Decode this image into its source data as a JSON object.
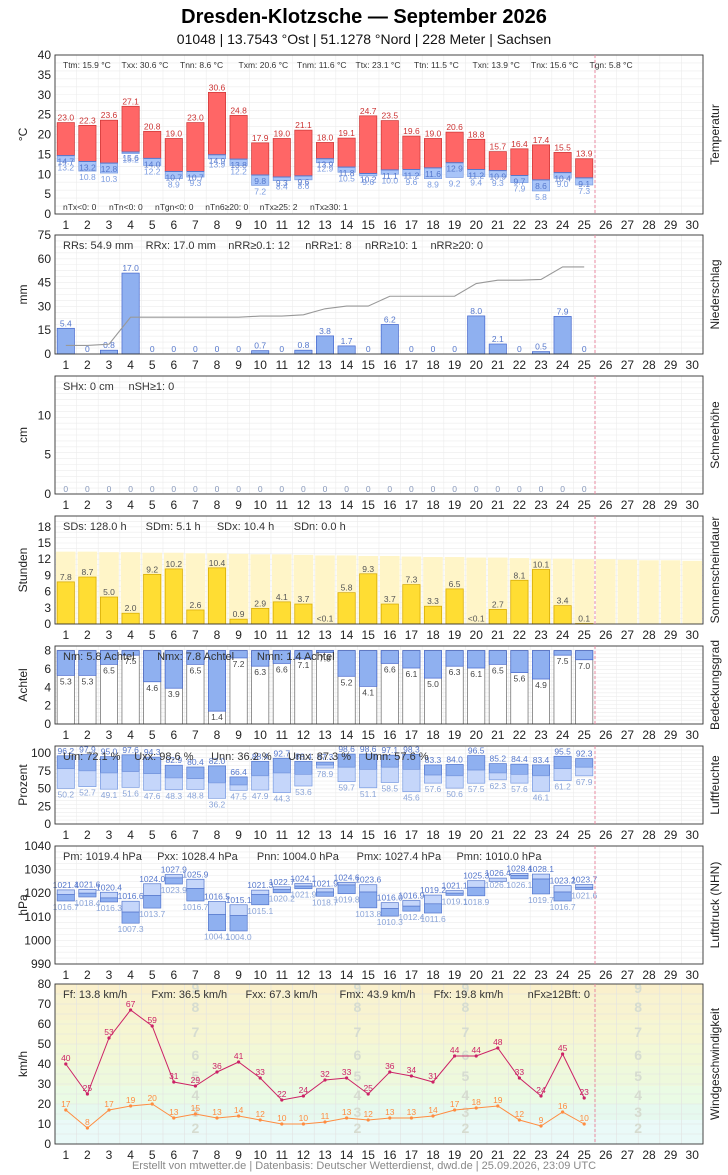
{
  "page": {
    "title": "Dresden-Klotzsche  —  September 2026",
    "subtitle": "01048  |  13.7543 °Ost  |  51.1278 °Nord  |  228 Meter  |  Sachsen",
    "footer": "Erstellt von mtwetter.de | Datenbasis: Deutscher Wetterdienst, dwd.de | 25.09.2026, 23:09 UTC"
  },
  "colors": {
    "temp_upper": "#ff6666",
    "temp_lower": "#a8c4f8",
    "precip": "#8fb0f0",
    "sun": "#ffdd33",
    "sun_bg": "#fff5c8",
    "cloud": "#8fb0f0",
    "humidity": "#8fb0f0",
    "pressure": "#8fb0f0",
    "wind_fx": "#cc2266",
    "wind_ff": "#ff8c40",
    "today_line": "#e88aa0"
  },
  "chart_data": [
    {
      "id": "temperatur",
      "type": "bar",
      "panel_label": "Temperatur",
      "ylabel": "°C",
      "ylim": [
        0,
        40
      ],
      "yticks": [
        0,
        5,
        10,
        15,
        20,
        25,
        30,
        35,
        40
      ],
      "days": [
        1,
        2,
        3,
        4,
        5,
        6,
        7,
        8,
        9,
        10,
        11,
        12,
        13,
        14,
        15,
        16,
        17,
        18,
        19,
        20,
        21,
        22,
        23,
        24,
        25
      ],
      "series": [
        {
          "name": "Tx",
          "values": [
            23.0,
            22.3,
            23.6,
            27.1,
            20.8,
            19.0,
            23.0,
            30.6,
            24.8,
            17.9,
            19.0,
            21.1,
            18.0,
            19.1,
            24.7,
            23.5,
            19.6,
            19.0,
            20.6,
            18.8,
            15.7,
            16.4,
            17.4,
            15.5,
            13.9
          ]
        },
        {
          "name": "Tm",
          "values": [
            14.7,
            13.2,
            12.8,
            15.6,
            14.0,
            10.7,
            10.7,
            14.9,
            13.8,
            9.8,
            9.3,
            9.6,
            13.9,
            11.8,
            10.2,
            11.1,
            11.2,
            11.6,
            12.9,
            11.2,
            10.9,
            9.7,
            8.6,
            10.4,
            9.1
          ]
        },
        {
          "name": "Tn",
          "values": [
            13.2,
            10.8,
            10.3,
            15.2,
            12.2,
            8.9,
            9.3,
            13.9,
            12.2,
            7.2,
            8.4,
            8.6,
            12.9,
            10.5,
            9.6,
            10.0,
            9.6,
            8.9,
            9.2,
            9.4,
            9.3,
            7.9,
            5.8,
            9.0,
            7.3
          ]
        }
      ],
      "stats_top": [
        "Ttm: 15.9 °C",
        "Txx: 30.6 °C",
        "Tnn: 8.6 °C",
        "Txm: 20.6 °C",
        "Tnm: 11.6 °C",
        "Ttx: 23.1 °C",
        "Ttn: 11.5 °C",
        "Txn: 13.9 °C",
        "Tnx: 15.6 °C",
        "Tgn: 5.8 °C"
      ],
      "stats_bottom": [
        "nTx<0: 0",
        "nTn<0: 0",
        "nTgn<0: 0",
        "nTn6≥20: 0",
        "nTx≥25: 2",
        "nTx≥30: 1"
      ]
    },
    {
      "id": "niederschlag",
      "type": "bar",
      "panel_label": "Niederschlag",
      "ylabel": "mm",
      "ylim": [
        0,
        25
      ],
      "yticks": [
        0,
        5,
        10,
        15,
        20,
        25
      ],
      "ytick_labels": [
        "0",
        "15",
        "30",
        "45",
        "60",
        "75"
      ],
      "values": [
        5.4,
        0,
        0.8,
        17.0,
        0,
        0,
        0,
        0,
        0,
        0.7,
        0,
        0.8,
        3.8,
        1.7,
        0,
        6.2,
        0,
        0,
        0,
        8.0,
        2.1,
        0,
        0.5,
        7.9,
        0
      ],
      "cumulative": [
        5.4,
        5.4,
        6.2,
        23.2,
        23.2,
        23.2,
        23.2,
        23.2,
        23.2,
        23.9,
        23.9,
        24.7,
        28.5,
        30.2,
        30.2,
        36.4,
        36.4,
        36.4,
        36.4,
        44.4,
        46.5,
        46.5,
        47.0,
        54.9,
        54.9
      ],
      "stats_top": [
        "RRs: 54.9 mm",
        "RRx: 17.0 mm",
        "nRR≥0.1: 12",
        "nRR≥1: 8",
        "nRR≥10: 1",
        "nRR≥20: 0"
      ]
    },
    {
      "id": "schneehoehe",
      "type": "bar",
      "panel_label": "Schneehöhe",
      "ylabel": "cm",
      "ylim": [
        0,
        15
      ],
      "yticks": [
        0,
        5,
        10
      ],
      "values": [
        0,
        0,
        0,
        0,
        0,
        0,
        0,
        0,
        0,
        0,
        0,
        0,
        0,
        0,
        0,
        0,
        0,
        0,
        0,
        0,
        0,
        0,
        0,
        0,
        0
      ],
      "stats_top": [
        "SHx: 0 cm",
        "nSH≥1: 0"
      ]
    },
    {
      "id": "sonnenschein",
      "type": "bar",
      "panel_label": "Sonnenscheindauer",
      "ylabel": "Stunden",
      "ylim": [
        0,
        20
      ],
      "yticks": [
        0,
        3,
        6,
        9,
        12,
        15,
        18
      ],
      "values": [
        7.8,
        8.7,
        5.0,
        2.0,
        9.2,
        10.2,
        2.6,
        10.4,
        0.9,
        2.9,
        4.1,
        3.7,
        0.05,
        5.8,
        9.3,
        3.7,
        7.3,
        3.3,
        6.5,
        0.05,
        2.7,
        8.1,
        10.1,
        3.4,
        0.1
      ],
      "labels": [
        "7.8",
        "8.7",
        "5.0",
        "2.0",
        "9.2",
        "10.2",
        "2.6",
        "10.4",
        "0.9",
        "2.9",
        "4.1",
        "3.7",
        "<0.1",
        "5.8",
        "9.3",
        "3.7",
        "7.3",
        "3.3",
        "6.5",
        "<0.1",
        "2.7",
        "8.1",
        "10.1",
        "3.4",
        "0.1"
      ],
      "astronomical_max": [
        13.4,
        13.4,
        13.3,
        13.3,
        13.2,
        13.2,
        13.1,
        13.1,
        13.0,
        12.9,
        12.9,
        12.8,
        12.7,
        12.7,
        12.6,
        12.6,
        12.5,
        12.4,
        12.4,
        12.3,
        12.3,
        12.2,
        12.1,
        12.1,
        12.0,
        12.0,
        11.9,
        11.8,
        11.8,
        11.7
      ],
      "stats_top": [
        "SDs: 128.0 h",
        "SDm: 5.1 h",
        "SDx: 10.4 h",
        "SDn: 0.0 h"
      ]
    },
    {
      "id": "bedeckungsgrad",
      "type": "bar",
      "panel_label": "Bedeckungsgrad",
      "ylabel": "Achtel",
      "ylim": [
        0,
        8.5
      ],
      "yticks": [
        0,
        2,
        4,
        6,
        8
      ],
      "values": [
        5.3,
        5.3,
        6.5,
        7.5,
        4.6,
        3.9,
        6.5,
        1.4,
        7.2,
        6.3,
        6.6,
        7.1,
        7.8,
        5.2,
        4.1,
        6.6,
        6.1,
        5.0,
        6.3,
        6.1,
        6.5,
        5.6,
        4.9,
        7.5,
        7.0
      ],
      "stats_top": [
        "Nm: 5.8 Achtel",
        "Nmx: 7.8 Achtel",
        "Nmn: 1.4 Achtel"
      ]
    },
    {
      "id": "luftfeuchte",
      "type": "bar",
      "panel_label": "Luftfeuchte",
      "ylabel": "Prozent",
      "ylim": [
        0,
        110
      ],
      "yticks": [
        0,
        25,
        50,
        75,
        100
      ],
      "series": [
        {
          "name": "Ux",
          "values": [
            96.2,
            97.9,
            95.0,
            97.6,
            94.3,
            82.9,
            80.4,
            82.0,
            66.4,
            88.4,
            92.7,
            88.4,
            87.3,
            98.6,
            98.6,
            97.1,
            98.3,
            83.3,
            84.0,
            96.5,
            85.2,
            84.4,
            83.4,
            95.5,
            92.3
          ]
        },
        {
          "name": "Um",
          "values": [
            78.0,
            75.0,
            72.0,
            74.0,
            71.0,
            65.0,
            64.0,
            58.0,
            55.0,
            68.0,
            72.0,
            70.0,
            83.0,
            80.0,
            77.0,
            80.0,
            77.0,
            69.0,
            68.0,
            76.0,
            72.0,
            70.0,
            68.0,
            78.0,
            80.0
          ]
        },
        {
          "name": "Un",
          "values": [
            50.2,
            52.7,
            49.1,
            51.6,
            47.6,
            48.3,
            48.8,
            36.2,
            47.5,
            47.9,
            44.3,
            53.6,
            78.9,
            59.7,
            51.1,
            58.5,
            45.6,
            57.6,
            50.6,
            57.5,
            62.3,
            57.6,
            46.1,
            61.2,
            67.9
          ]
        }
      ],
      "stats_top": [
        "Um: 72.1 %",
        "Uxx: 98.6 %",
        "Unn: 36.2 %",
        "Umx: 87.3 %",
        "Umn: 57.6 %"
      ]
    },
    {
      "id": "luftdruck",
      "type": "bar",
      "panel_label": "Luftdruck (NHN)",
      "ylabel": "hPa",
      "ylim": [
        990,
        1040
      ],
      "yticks": [
        990,
        1000,
        1010,
        1020,
        1030,
        1040
      ],
      "series": [
        {
          "name": "Px",
          "values": [
            1021.4,
            1021.6,
            1020.4,
            1016.6,
            1024.0,
            1027.9,
            1025.9,
            1016.5,
            1015.1,
            1021.3,
            1022.7,
            1024.1,
            1021.9,
            1024.6,
            1023.6,
            1016.0,
            1016.9,
            1019.2,
            1021.1,
            1025.3,
            1026.4,
            1028.4,
            1028.1,
            1023.2,
            1023.7
          ]
        },
        {
          "name": "Pm",
          "values": [
            1019.5,
            1020.0,
            1018.0,
            1012.0,
            1019.0,
            1026.5,
            1022.0,
            1011.0,
            1010.5,
            1019.5,
            1021.5,
            1023.0,
            1020.5,
            1023.5,
            1020.5,
            1013.5,
            1014.5,
            1015.5,
            1020.0,
            1022.5,
            1025.0,
            1027.5,
            1026.0,
            1020.5,
            1022.5
          ]
        },
        {
          "name": "Pn",
          "values": [
            1016.7,
            1018.4,
            1016.3,
            1007.3,
            1013.7,
            1023.9,
            1016.7,
            1004.1,
            1004.0,
            1015.1,
            1020.2,
            1021.9,
            1018.7,
            1019.8,
            1013.8,
            1010.3,
            1012.4,
            1011.6,
            1019.1,
            1018.9,
            1026.1,
            1026.1,
            1019.7,
            1016.7,
            1021.6
          ]
        }
      ],
      "stats_top": [
        "Pm: 1019.4 hPa",
        "Pxx: 1028.4 hPa",
        "Pnn: 1004.0 hPa",
        "Pmx: 1027.4 hPa",
        "Pmn: 1010.0 hPa"
      ]
    },
    {
      "id": "windgeschwindigkeit",
      "type": "line",
      "panel_label": "Windgeschwindigkeit",
      "ylabel": "km/h",
      "ylim": [
        0,
        80
      ],
      "yticks": [
        0,
        10,
        20,
        30,
        40,
        50,
        60,
        70,
        80
      ],
      "series": [
        {
          "name": "Fx",
          "values": [
            40,
            25,
            53,
            67,
            59,
            31,
            29,
            36,
            41,
            33,
            22,
            24,
            32,
            33,
            25,
            36,
            34,
            31,
            44,
            44,
            48,
            33,
            24,
            45,
            23
          ]
        },
        {
          "name": "Fm",
          "values": [
            17,
            8,
            17,
            19,
            20,
            13,
            15,
            13,
            14,
            12,
            10,
            10,
            11,
            13,
            12,
            13,
            13,
            14,
            17,
            18,
            19,
            12,
            9,
            16,
            10
          ]
        }
      ],
      "beaufort_labels": [
        "2",
        "3",
        "4",
        "5",
        "6",
        "7",
        "8",
        "9"
      ],
      "stats_top": [
        "Ff: 13.8 km/h",
        "Fxm: 36.5 km/h",
        "Fxx: 67.3 km/h",
        "Fmx: 43.9 km/h",
        "Ffx: 19.8 km/h",
        "nFx≥12Bft: 0"
      ]
    }
  ]
}
